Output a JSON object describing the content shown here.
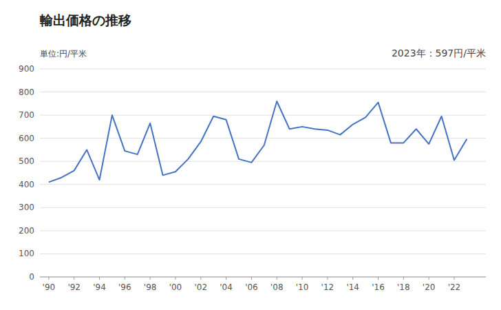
{
  "chart_data": {
    "type": "line",
    "title": "輸出価格の推移",
    "y_label": "単位:円/平米",
    "annotation": "2023年：597円/平米",
    "x": [
      1990,
      1991,
      1992,
      1993,
      1994,
      1995,
      1996,
      1997,
      1998,
      1999,
      2000,
      2001,
      2002,
      2003,
      2004,
      2005,
      2006,
      2007,
      2008,
      2009,
      2010,
      2011,
      2012,
      2013,
      2014,
      2015,
      2016,
      2017,
      2018,
      2019,
      2020,
      2021,
      2022,
      2023
    ],
    "values": [
      410,
      430,
      460,
      550,
      420,
      700,
      545,
      530,
      665,
      440,
      455,
      510,
      585,
      695,
      680,
      510,
      495,
      570,
      760,
      640,
      650,
      640,
      635,
      615,
      660,
      690,
      755,
      580,
      580,
      640,
      575,
      695,
      505,
      597
    ],
    "color": "#4472C4",
    "xlim": [
      1989.3,
      2024.5
    ],
    "xticks": [
      {
        "value": 1990,
        "label": "'90"
      },
      {
        "value": 1992,
        "label": "'92"
      },
      {
        "value": 1994,
        "label": "'94"
      },
      {
        "value": 1996,
        "label": "'96"
      },
      {
        "value": 1998,
        "label": "'98"
      },
      {
        "value": 2000,
        "label": "'00"
      },
      {
        "value": 2002,
        "label": "'02"
      },
      {
        "value": 2004,
        "label": "'04"
      },
      {
        "value": 2006,
        "label": "'06"
      },
      {
        "value": 2008,
        "label": "'08"
      },
      {
        "value": 2010,
        "label": "'10"
      },
      {
        "value": 2012,
        "label": "'12"
      },
      {
        "value": 2014,
        "label": "'14"
      },
      {
        "value": 2016,
        "label": "'16"
      },
      {
        "value": 2018,
        "label": "'18"
      },
      {
        "value": 2020,
        "label": "'20"
      },
      {
        "value": 2022,
        "label": "'22"
      }
    ],
    "ylim": [
      0,
      900
    ],
    "yticks": [
      0,
      100,
      200,
      300,
      400,
      500,
      600,
      700,
      800,
      900
    ],
    "grid": true
  }
}
